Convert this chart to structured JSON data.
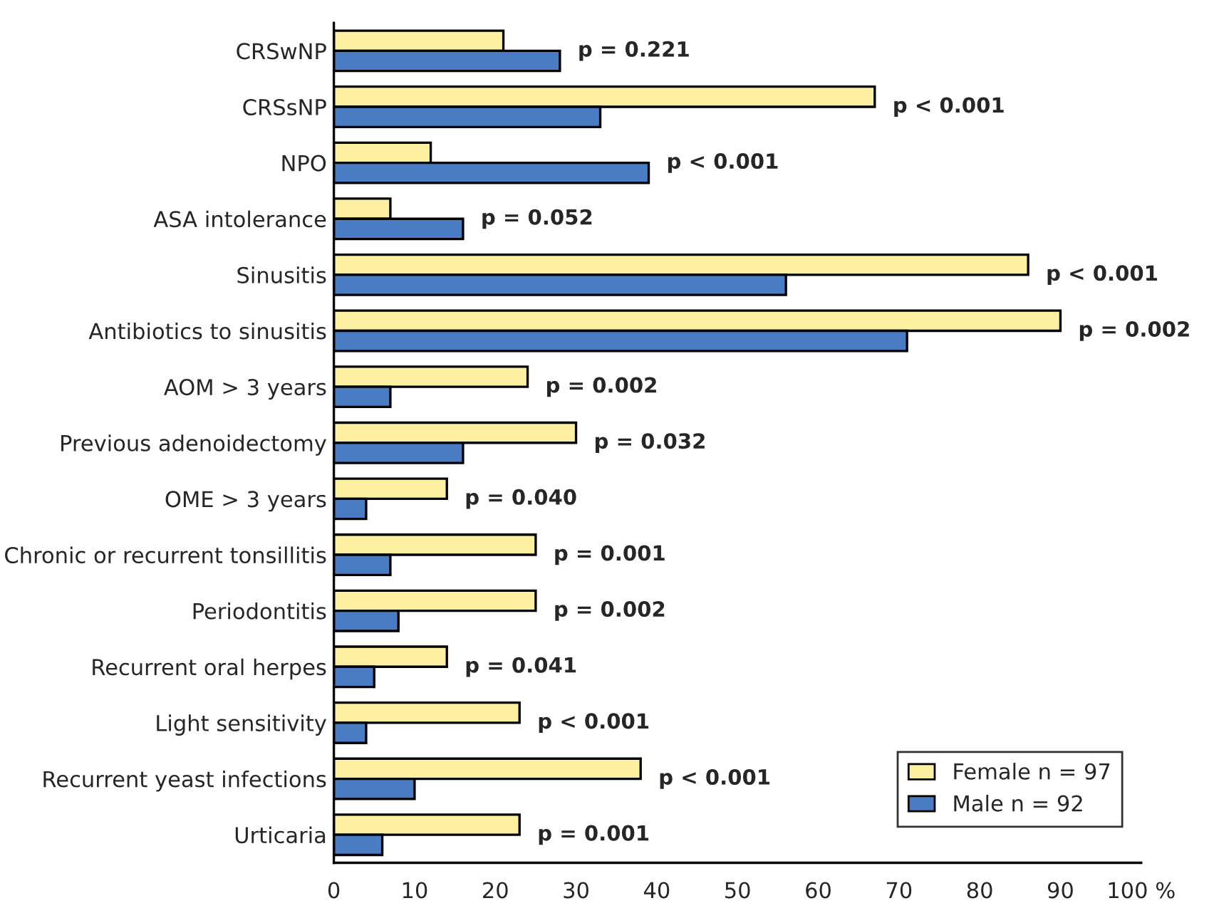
{
  "chart_data": {
    "type": "bar",
    "orientation": "horizontal",
    "categories": [
      "CRSwNP",
      "CRSsNP",
      "NPO",
      "ASA intolerance",
      "Sinusitis",
      "Antibiotics to sinusitis",
      "AOM > 3 years",
      "Previous adenoidectomy",
      "OME > 3 years",
      "Chronic or recurrent tonsillitis",
      "Periodontitis",
      "Recurrent oral herpes",
      "Light sensitivity",
      "Recurrent yeast infections",
      "Urticaria"
    ],
    "series": [
      {
        "name": "Female n = 97",
        "color": "#fdf0a0",
        "values": [
          21,
          67,
          12,
          7,
          86,
          90,
          24,
          30,
          14,
          25,
          25,
          14,
          23,
          38,
          23
        ]
      },
      {
        "name": "Male n = 92",
        "color": "#4a7cc4",
        "values": [
          28,
          33,
          39,
          16,
          56,
          71,
          7,
          16,
          4,
          7,
          8,
          5,
          4,
          10,
          6
        ]
      }
    ],
    "xlim": [
      0,
      100
    ],
    "xticks": [
      0,
      10,
      20,
      30,
      40,
      50,
      60,
      70,
      80,
      90,
      {
        "value": 100,
        "label": "100 %"
      }
    ],
    "grid": false,
    "legend": "bottom right",
    "annotations": [
      "p = 0.221",
      "p < 0.001",
      "p < 0.001",
      "p = 0.052",
      "p < 0.001",
      "p = 0.002",
      "p = 0.002",
      "p = 0.032",
      "p = 0.040",
      "p = 0.001",
      "p = 0.002",
      "p = 0.041",
      "p < 0.001",
      "p < 0.001",
      "p = 0.001"
    ]
  }
}
